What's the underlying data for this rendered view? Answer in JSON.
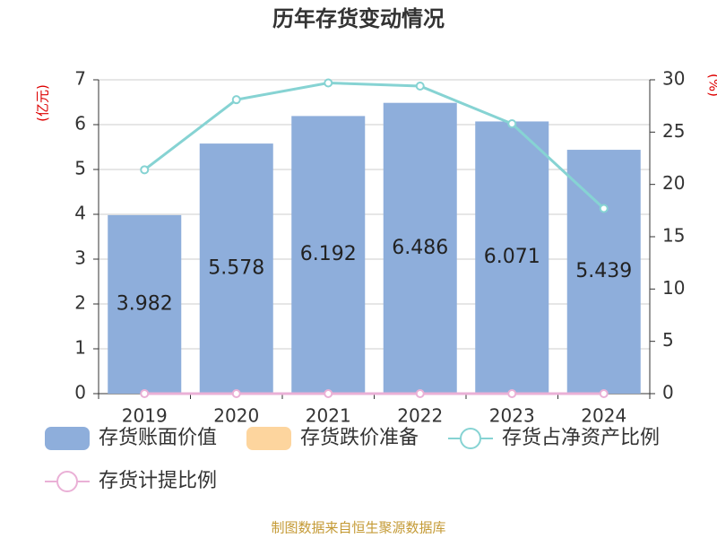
{
  "chart_data": {
    "type": "bar",
    "title": "历年存货变动情况",
    "y_label": "(亿元)",
    "y2_label": "(%)",
    "categories": [
      "2019",
      "2020",
      "2021",
      "2022",
      "2023",
      "2024"
    ],
    "series": [
      {
        "name": "存货账面价值",
        "type": "bar",
        "color": "#8eaedb",
        "values": [
          3.982,
          5.578,
          6.192,
          6.486,
          6.071,
          5.439
        ]
      },
      {
        "name": "存货跌价准备",
        "type": "bar",
        "color": "#fdd59e",
        "values": [
          0,
          0,
          0,
          0,
          0,
          0
        ]
      },
      {
        "name": "存货占净资产比例",
        "type": "line",
        "axis": "y2",
        "color": "#86d3d3",
        "values": [
          21.4,
          28.1,
          29.7,
          29.4,
          25.8,
          17.7
        ]
      },
      {
        "name": "存货计提比例",
        "type": "line",
        "axis": "y2",
        "color": "#eab0d6",
        "values": [
          0,
          0,
          0,
          0,
          0,
          0
        ]
      }
    ],
    "ylim": [
      0,
      7
    ],
    "yticks": [
      0,
      1,
      2,
      3,
      4,
      5,
      6,
      7
    ],
    "y2lim": [
      0,
      30
    ],
    "y2ticks": [
      0,
      5,
      10,
      15,
      20,
      25,
      30
    ],
    "grid": true,
    "source": "制图数据来自恒生聚源数据库"
  }
}
